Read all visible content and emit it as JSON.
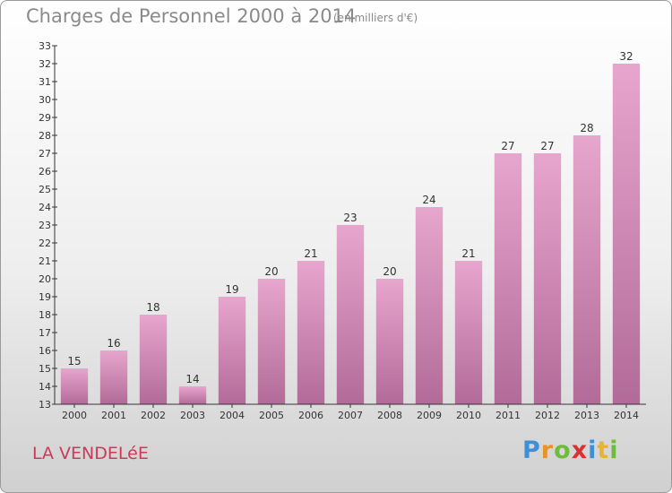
{
  "header": {
    "title": "Charges de Personnel 2000 à 2014",
    "unit": "(en milliers d'€)"
  },
  "footer": {
    "city": "LA VENDELéE",
    "logo": {
      "p": "P",
      "r": "r",
      "o": "o",
      "x": "x",
      "i1": "i",
      "t": "t",
      "i2": "i"
    }
  },
  "colors": {
    "bar_top": "#e7a6cd",
    "bar_bottom": "#b26b98",
    "title": "#8a8a8a",
    "city": "#cc3a5a"
  },
  "chart_data": {
    "type": "bar",
    "title": "Charges de Personnel 2000 à 2014",
    "subtitle": "(en milliers d'€)",
    "categories": [
      "2000",
      "2001",
      "2002",
      "2003",
      "2004",
      "2005",
      "2006",
      "2007",
      "2008",
      "2009",
      "2010",
      "2011",
      "2012",
      "2013",
      "2014"
    ],
    "values": [
      15,
      16,
      18,
      14,
      19,
      20,
      21,
      23,
      20,
      24,
      21,
      27,
      27,
      28,
      32
    ],
    "ylim": [
      13,
      33
    ],
    "yticks": [
      13,
      14,
      15,
      16,
      17,
      18,
      19,
      20,
      21,
      22,
      23,
      24,
      25,
      26,
      27,
      28,
      29,
      30,
      31,
      32,
      33
    ],
    "grid": false,
    "legend": "none"
  }
}
